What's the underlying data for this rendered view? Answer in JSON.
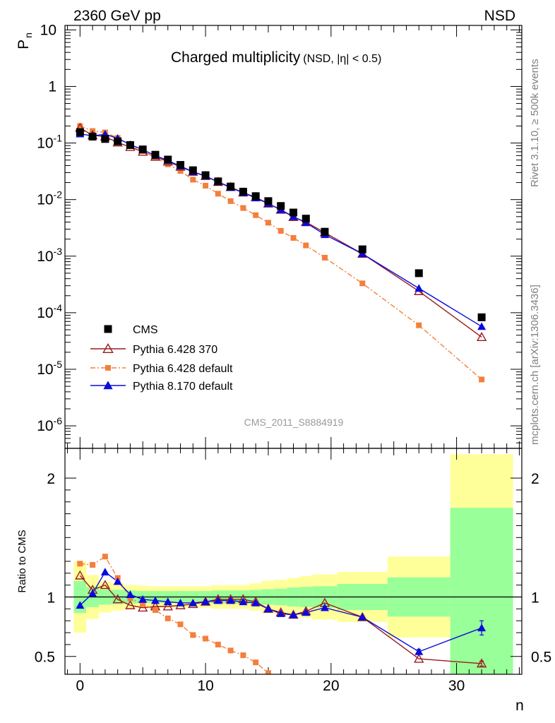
{
  "header": {
    "left": "2360 GeV pp",
    "right": "NSD"
  },
  "side_labels": {
    "top": "Rivet 3.1.10, ≥ 500k events",
    "bottom": "mcplots.cern.ch [arXiv:1306.3436]"
  },
  "chart_data": [
    {
      "type": "scatter",
      "title": "Charged multiplicity",
      "subtitle": "(NSD, |η| < 0.5)",
      "watermark": "CMS_2011_S8884919",
      "ylabel": "P",
      "ylabel_sub": "n",
      "yscale": "log",
      "ylim": [
        4e-07,
        12
      ],
      "xlim": [
        -1.2,
        35.2
      ],
      "ytick_labels": [
        {
          "base": "10",
          "exp": "-6",
          "value": 1e-06
        },
        {
          "base": "10",
          "exp": "-5",
          "value": 1e-05
        },
        {
          "base": "10",
          "exp": "-4",
          "value": 0.0001
        },
        {
          "base": "10",
          "exp": "-3",
          "value": 0.001
        },
        {
          "base": "10",
          "exp": "-2",
          "value": 0.01
        },
        {
          "base": "10",
          "exp": "-1",
          "value": 0.1
        },
        {
          "base": "1",
          "exp": "",
          "value": 1
        },
        {
          "base": "10",
          "exp": "",
          "value": 10
        }
      ],
      "series": [
        {
          "name": "CMS",
          "color": "#000000",
          "marker": "square",
          "line": "none",
          "x": [
            0,
            1,
            2,
            3,
            4,
            5,
            6,
            7,
            8,
            9,
            10,
            11,
            12,
            13,
            14,
            15,
            16,
            17,
            18,
            19.5,
            22.5,
            27,
            32
          ],
          "y": [
            0.156,
            0.13,
            0.118,
            0.107,
            0.092,
            0.077,
            0.062,
            0.051,
            0.041,
            0.033,
            0.027,
            0.021,
            0.017,
            0.0138,
            0.0115,
            0.0094,
            0.0077,
            0.0059,
            0.0046,
            0.0027,
            0.00132,
            0.0005,
            8.3e-05
          ]
        },
        {
          "name": "Pythia 6.428 370",
          "color": "#9b1b1f",
          "marker": "open-triangle",
          "line": "solid",
          "x": [
            0,
            1,
            2,
            3,
            4,
            5,
            6,
            7,
            8,
            9,
            10,
            11,
            12,
            13,
            14,
            15,
            16,
            17,
            18,
            19.5,
            22.5,
            27,
            32
          ],
          "y": [
            0.185,
            0.137,
            0.13,
            0.102,
            0.085,
            0.07,
            0.057,
            0.047,
            0.038,
            0.031,
            0.026,
            0.0205,
            0.0166,
            0.0133,
            0.011,
            0.0085,
            0.0066,
            0.0049,
            0.004,
            0.0026,
            0.0011,
            0.00024,
            3.7e-05
          ]
        },
        {
          "name": "Pythia 6.428 default",
          "color": "#f47f3b",
          "marker": "square",
          "line": "dashdot",
          "x": [
            0,
            1,
            2,
            3,
            4,
            5,
            6,
            7,
            8,
            9,
            10,
            11,
            12,
            13,
            14,
            15,
            16,
            17,
            18,
            19.5,
            22.5,
            27,
            32
          ],
          "y": [
            0.2,
            0.163,
            0.154,
            0.123,
            0.091,
            0.072,
            0.055,
            0.042,
            0.032,
            0.0225,
            0.0176,
            0.0127,
            0.0094,
            0.0071,
            0.0053,
            0.0039,
            0.0028,
            0.0021,
            0.00155,
            0.00094,
            0.00033,
            6e-05,
            6.6e-06
          ]
        },
        {
          "name": "Pythia 8.170 default",
          "color": "#0a0ade",
          "marker": "triangle",
          "line": "solid",
          "x": [
            0,
            1,
            2,
            3,
            4,
            5,
            6,
            7,
            8,
            9,
            10,
            11,
            12,
            13,
            14,
            15,
            16,
            17,
            18,
            19.5,
            22.5,
            27,
            32
          ],
          "y": [
            0.145,
            0.134,
            0.143,
            0.121,
            0.094,
            0.076,
            0.06,
            0.049,
            0.039,
            0.031,
            0.026,
            0.0205,
            0.0163,
            0.0132,
            0.0107,
            0.0085,
            0.0066,
            0.005,
            0.0039,
            0.0024,
            0.0011,
            0.00027,
            5.7e-05
          ]
        }
      ]
    },
    {
      "type": "scatter",
      "ylabel": "Ratio to CMS",
      "xlabel": "n",
      "ylim": [
        0.35,
        2.25
      ],
      "xlim": [
        -1.2,
        35.2
      ],
      "yticks": [
        0.5,
        1,
        2
      ],
      "ytick_labels": [
        "0.5",
        "1",
        "2"
      ],
      "xticks": [
        0,
        10,
        20,
        30
      ],
      "xtick_labels": [
        "0",
        "10",
        "20",
        "30"
      ],
      "reference": 1,
      "bands": {
        "edges": [
          -0.5,
          0.5,
          1.5,
          2.5,
          3.5,
          4.5,
          5.5,
          6.5,
          7.5,
          8.5,
          9.5,
          10.5,
          11.5,
          12.5,
          13.5,
          14.5,
          15.5,
          16.5,
          17.5,
          18.5,
          20.5,
          24.5,
          29.5,
          34.5
        ],
        "inner_color": "#99ff99",
        "outer_color": "#ffff99",
        "inner_half_width": [
          0.135,
          0.085,
          0.065,
          0.06,
          0.055,
          0.05,
          0.05,
          0.05,
          0.05,
          0.05,
          0.05,
          0.055,
          0.055,
          0.055,
          0.06,
          0.065,
          0.07,
          0.08,
          0.085,
          0.09,
          0.11,
          0.165,
          0.75
        ],
        "outer_half_width": [
          0.3,
          0.185,
          0.13,
          0.115,
          0.1,
          0.095,
          0.09,
          0.09,
          0.09,
          0.09,
          0.09,
          0.1,
          0.1,
          0.1,
          0.115,
          0.135,
          0.145,
          0.16,
          0.175,
          0.19,
          0.21,
          0.34,
          1.2
        ]
      },
      "series": [
        {
          "name": "Pythia 6.428 370",
          "color": "#9b1b1f",
          "marker": "open-triangle",
          "line": "solid",
          "x": [
            0,
            1,
            2,
            3,
            4,
            5,
            6,
            7,
            8,
            9,
            10,
            11,
            12,
            13,
            14,
            15,
            16,
            17,
            18,
            19.5,
            22.5,
            27,
            32
          ],
          "y": [
            1.18,
            1.06,
            1.1,
            0.98,
            0.93,
            0.91,
            0.92,
            0.92,
            0.93,
            0.94,
            0.96,
            0.98,
            0.98,
            0.98,
            0.96,
            0.9,
            0.87,
            0.85,
            0.88,
            0.95,
            0.83,
            0.48,
            0.44
          ],
          "yerr": [
            0,
            0,
            0,
            0,
            0,
            0,
            0,
            0,
            0,
            0,
            0,
            0,
            0,
            0,
            0,
            0,
            0,
            0,
            0,
            0,
            0,
            0,
            0.02
          ]
        },
        {
          "name": "Pythia 6.428 default",
          "color": "#f47f3b",
          "marker": "square",
          "line": "dashdot",
          "x": [
            0,
            1,
            2,
            3,
            4,
            5,
            6,
            7,
            8,
            9,
            10,
            11,
            12,
            13,
            14,
            15
          ],
          "y": [
            1.28,
            1.27,
            1.34,
            1.16,
            0.99,
            0.94,
            0.89,
            0.82,
            0.77,
            0.68,
            0.65,
            0.6,
            0.55,
            0.51,
            0.45,
            0.36
          ]
        },
        {
          "name": "Pythia 8.170 default",
          "color": "#0a0ade",
          "marker": "triangle",
          "line": "solid",
          "x": [
            0,
            1,
            2,
            3,
            4,
            5,
            6,
            7,
            8,
            9,
            10,
            11,
            12,
            13,
            14,
            15,
            16,
            17,
            18,
            19.5,
            22.5,
            27,
            32
          ],
          "y": [
            0.93,
            1.03,
            1.21,
            1.13,
            1.02,
            0.98,
            0.97,
            0.96,
            0.95,
            0.95,
            0.96,
            0.97,
            0.97,
            0.96,
            0.95,
            0.9,
            0.86,
            0.85,
            0.87,
            0.91,
            0.83,
            0.54,
            0.74
          ],
          "yerr": [
            0,
            0,
            0,
            0,
            0,
            0,
            0,
            0,
            0,
            0,
            0,
            0,
            0,
            0,
            0,
            0,
            0,
            0,
            0,
            0,
            0,
            0.02,
            0.06
          ]
        }
      ]
    }
  ]
}
